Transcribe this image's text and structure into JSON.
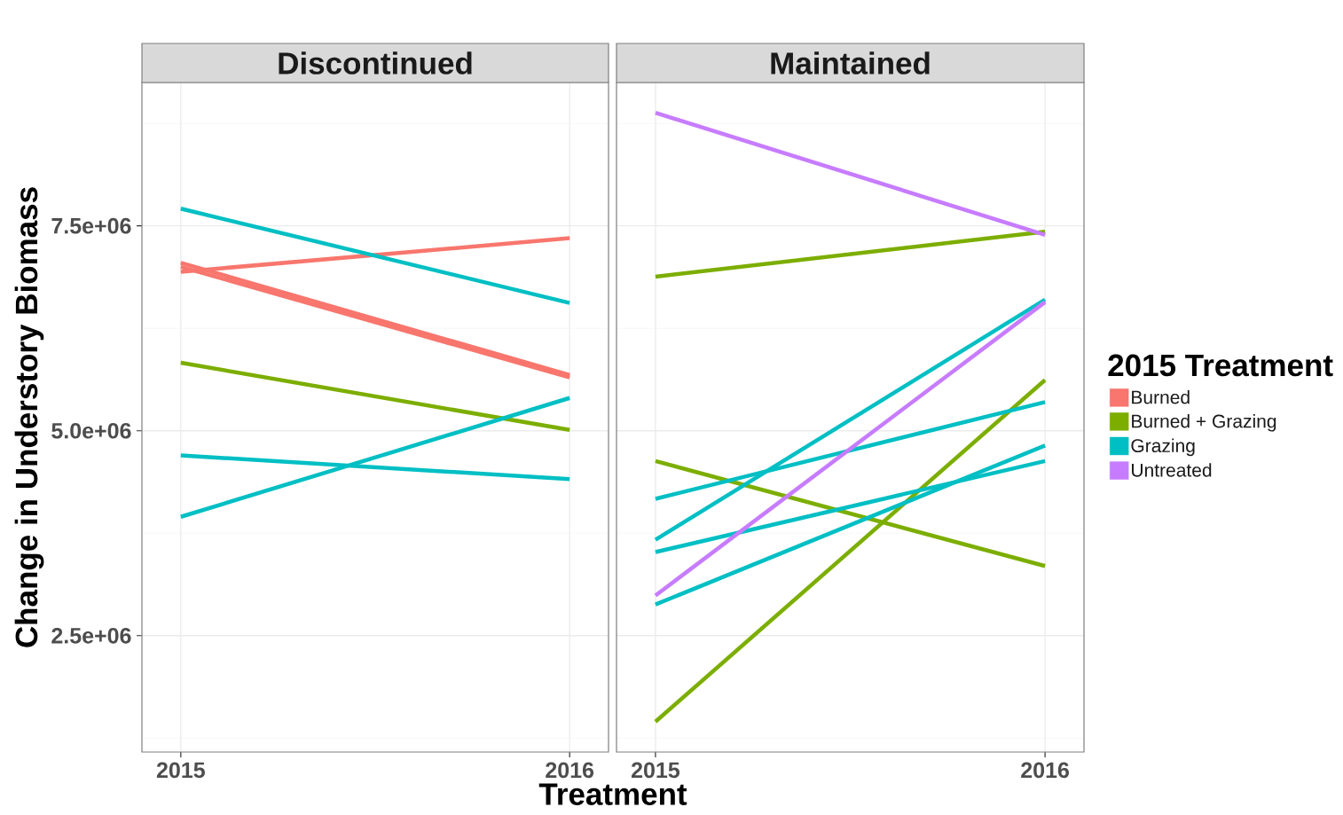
{
  "chart_data": [
    {
      "type": "line",
      "title": "Discontinued",
      "xlabel": "Treatment",
      "ylabel": "Change in Understory Biomass",
      "categories": [
        "2015",
        "2016"
      ],
      "ylim": [
        1080000,
        9250000
      ],
      "yticks": [
        {
          "value": 2500000,
          "label": "2.5e+06"
        },
        {
          "value": 5000000,
          "label": "5.0e+06"
        },
        {
          "value": 7500000,
          "label": "7.5e+06"
        }
      ],
      "grid": true,
      "legend": "right",
      "series": [
        {
          "name": "Burned",
          "color": "#f8766d",
          "values": [
            7050000,
            5680000
          ]
        },
        {
          "color": "#f8766d",
          "values": [
            7000000,
            5650000
          ]
        },
        {
          "color": "#f8766d",
          "values": [
            6940000,
            7350000
          ]
        },
        {
          "color": "#7cae00",
          "values": [
            5830000,
            5010000
          ]
        },
        {
          "color": "#00bfc4",
          "values": [
            7710000,
            6560000
          ]
        },
        {
          "color": "#00bfc4",
          "values": [
            4700000,
            4410000
          ]
        },
        {
          "color": "#00bfc4",
          "values": [
            3950000,
            5400000
          ]
        }
      ]
    },
    {
      "type": "line",
      "title": "Maintained",
      "categories": [
        "2015",
        "2016"
      ],
      "ylim": [
        1080000,
        9250000
      ],
      "yticks": [
        2500000,
        5000000,
        7500000
      ],
      "grid": true,
      "tick_labels": "x",
      "legend": "right",
      "legend_title": "2015 Treatment",
      "series": [
        {
          "name": "Burned + Grazing",
          "color": "#7cae00",
          "values": [
            6880000,
            7430000
          ]
        },
        {
          "color": "#7cae00",
          "values": [
            1450000,
            5620000
          ]
        },
        {
          "color": "#7cae00",
          "values": [
            4630000,
            3350000
          ]
        },
        {
          "name": "Grazing",
          "color": "#00bfc4",
          "values": [
            4170000,
            5350000
          ]
        },
        {
          "color": "#00bfc4",
          "values": [
            3670000,
            6600000
          ]
        },
        {
          "color": "#00bfc4",
          "values": [
            3520000,
            4630000
          ]
        },
        {
          "color": "#00bfc4",
          "values": [
            2880000,
            4820000
          ]
        },
        {
          "name": "Untreated",
          "color": "#c77cff",
          "values": [
            8880000,
            7390000
          ]
        },
        {
          "color": "#c77cff",
          "values": [
            2990000,
            6570000
          ]
        }
      ]
    }
  ]
}
